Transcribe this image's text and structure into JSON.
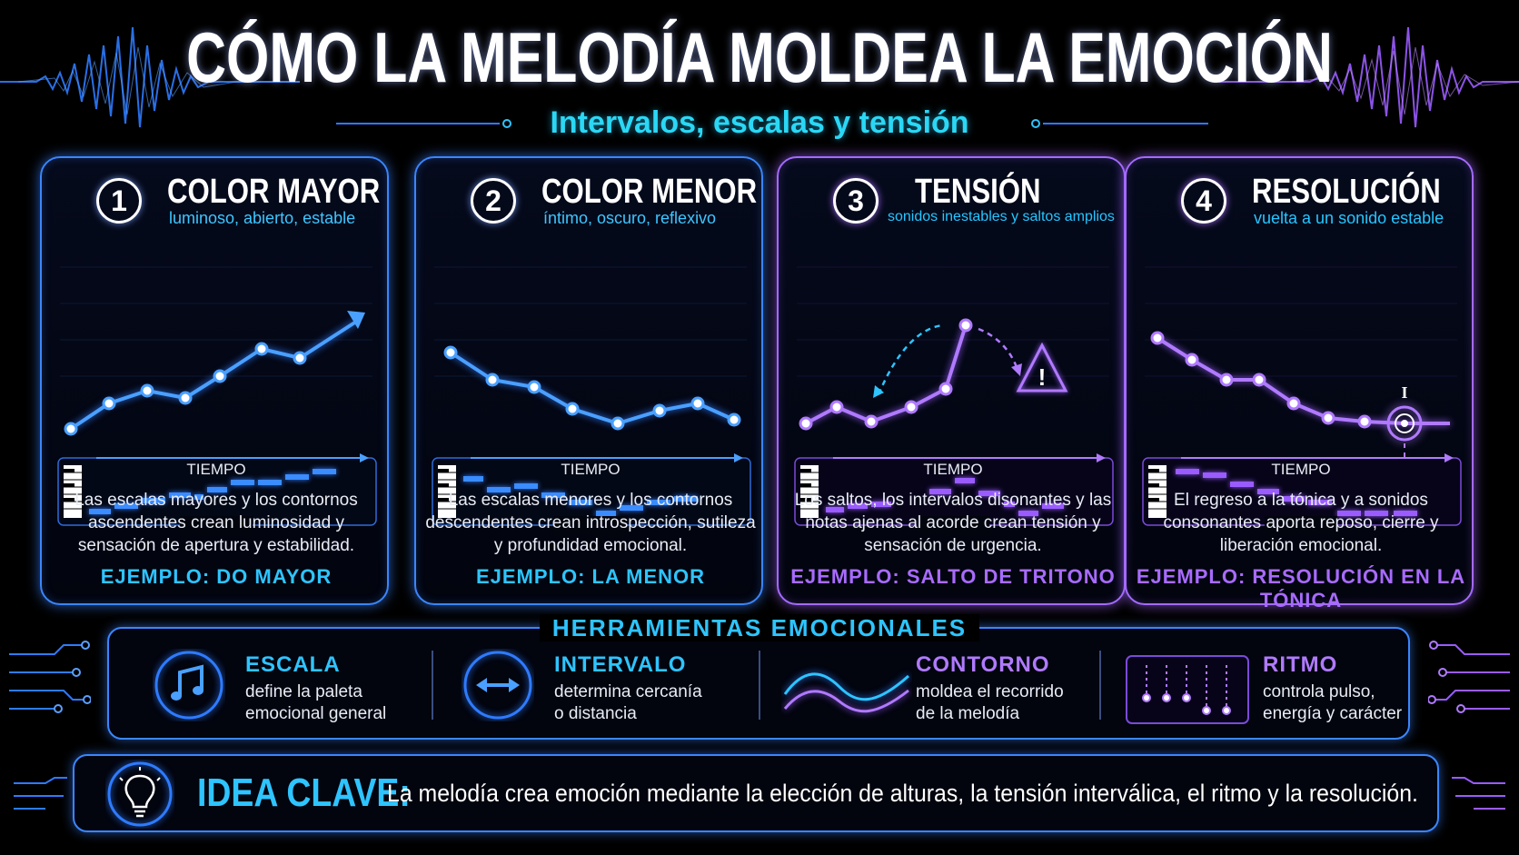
{
  "header": {
    "title": "CÓMO LA MELODÍA MOLDEA LA EMOCIÓN",
    "subtitle": "Intervalos, escalas y tensión"
  },
  "cards": [
    {
      "number": "1",
      "title": "COLOR MAYOR",
      "subtitle": "luminoso, abierto, estable",
      "axis_label": "TIEMPO",
      "description": "Las escalas mayores y los contornos ascendentes crean luminosidad y sensación de apertura y estabilidad.",
      "example": "EJEMPLO: DO MAYOR",
      "theme": "blue"
    },
    {
      "number": "2",
      "title": "COLOR MENOR",
      "subtitle": "íntimo, oscuro, reflexivo",
      "axis_label": "TIEMPO",
      "description": "Las escalas menores y los contornos descendentes crean introspección, sutileza y profundidad emocional.",
      "example": "EJEMPLO: LA MENOR",
      "theme": "blue"
    },
    {
      "number": "3",
      "title": "TENSIÓN",
      "subtitle": "sonidos inestables y saltos amplios",
      "axis_label": "TIEMPO",
      "description": "Los saltos, los intervalos disonantes y las notas ajenas al acorde crean tensión y sensación de urgencia.",
      "example": "EJEMPLO: SALTO DE TRITONO",
      "theme": "purple"
    },
    {
      "number": "4",
      "title": "RESOLUCIÓN",
      "subtitle": "vuelta a un sonido estable",
      "axis_label": "TIEMPO",
      "description": "El regreso a la tónica y a sonidos consonantes aporta reposo, cierre y liberación emocional.",
      "example": "EJEMPLO: RESOLUCIÓN EN LA TÓNICA",
      "theme": "purple"
    }
  ],
  "tools": {
    "title": "HERRAMIENTAS EMOCIONALES",
    "items": [
      {
        "name": "ESCALA",
        "line1": "define la paleta",
        "line2": "emocional general",
        "icon": "music-note-icon"
      },
      {
        "name": "INTERVALO",
        "line1": "determina cercanía",
        "line2": "o distancia",
        "icon": "double-arrow-icon"
      },
      {
        "name": "CONTORNO",
        "line1": "moldea el recorrido",
        "line2": "de la melodía",
        "icon": "wave-icon"
      },
      {
        "name": "RITMO",
        "line1": "controla pulso,",
        "line2": "energía y carácter",
        "icon": "rhythm-icon"
      }
    ]
  },
  "key_idea": {
    "label": "IDEA CLAVE:",
    "text": "La melodía crea emoción mediante la elección de alturas, la tensión interválica, el ritmo y la resolución.",
    "icon": "lightbulb-icon"
  },
  "colors": {
    "blue_accent": "#3a86ff",
    "cyan_text": "#2ec4ff",
    "purple_accent": "#a46bff"
  }
}
